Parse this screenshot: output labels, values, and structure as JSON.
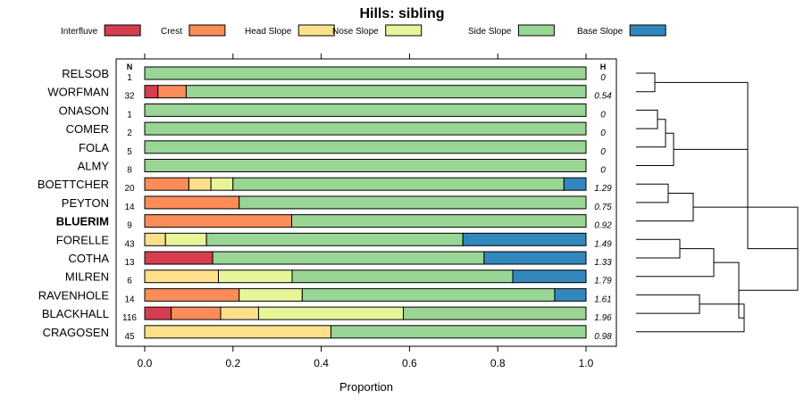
{
  "chart_data": {
    "type": "bar",
    "title": "Hills: sibling",
    "xlabel": "Proportion",
    "xlim": [
      0,
      1
    ],
    "xticks": [
      "0.0",
      "0.2",
      "0.4",
      "0.6",
      "0.8",
      "1.0"
    ],
    "n_header": "N",
    "h_header": "H",
    "legend": [
      {
        "name": "Interfluve",
        "color": "#d53e4f"
      },
      {
        "name": "Crest",
        "color": "#fc8d59"
      },
      {
        "name": "Head Slope",
        "color": "#fee08b"
      },
      {
        "name": "Nose Slope",
        "color": "#e6f598"
      },
      {
        "name": "Side Slope",
        "color": "#99d594"
      },
      {
        "name": "Base Slope",
        "color": "#3288bd"
      }
    ],
    "rows": [
      {
        "name": "RELSOB",
        "n": "1",
        "h": "0",
        "bold": false,
        "values": [
          0,
          0,
          0,
          0,
          1.0,
          0
        ]
      },
      {
        "name": "WORFMAN",
        "n": "32",
        "h": "0.54",
        "bold": false,
        "values": [
          0.03,
          0.064,
          0,
          0,
          0.906,
          0
        ]
      },
      {
        "name": "ONASON",
        "n": "1",
        "h": "0",
        "bold": false,
        "values": [
          0,
          0,
          0,
          0,
          1.0,
          0
        ]
      },
      {
        "name": "COMER",
        "n": "2",
        "h": "0",
        "bold": false,
        "values": [
          0,
          0,
          0,
          0,
          1.0,
          0
        ]
      },
      {
        "name": "FOLA",
        "n": "5",
        "h": "0",
        "bold": false,
        "values": [
          0,
          0,
          0,
          0,
          1.0,
          0
        ]
      },
      {
        "name": "ALMY",
        "n": "8",
        "h": "0",
        "bold": false,
        "values": [
          0,
          0,
          0,
          0,
          1.0,
          0
        ]
      },
      {
        "name": "BOETTCHER",
        "n": "20",
        "h": "1.29",
        "bold": false,
        "values": [
          0,
          0.1,
          0.05,
          0.05,
          0.75,
          0.05
        ]
      },
      {
        "name": "PEYTON",
        "n": "14",
        "h": "0.75",
        "bold": false,
        "values": [
          0,
          0.214,
          0,
          0,
          0.786,
          0
        ]
      },
      {
        "name": "BLUERIM",
        "n": "9",
        "h": "0.92",
        "bold": true,
        "values": [
          0,
          0.333,
          0,
          0,
          0.667,
          0
        ]
      },
      {
        "name": "FORELLE",
        "n": "43",
        "h": "1.49",
        "bold": false,
        "values": [
          0,
          0,
          0.047,
          0.093,
          0.581,
          0.279
        ]
      },
      {
        "name": "COTHA",
        "n": "13",
        "h": "1.33",
        "bold": false,
        "values": [
          0.154,
          0,
          0,
          0,
          0.615,
          0.231
        ]
      },
      {
        "name": "MILREN",
        "n": "6",
        "h": "1.79",
        "bold": false,
        "values": [
          0,
          0,
          0.167,
          0.167,
          0.5,
          0.166
        ]
      },
      {
        "name": "RAVENHOLE",
        "n": "14",
        "h": "1.61",
        "bold": false,
        "values": [
          0,
          0.214,
          0,
          0.143,
          0.572,
          0.071
        ]
      },
      {
        "name": "BLACKHALL",
        "n": "116",
        "h": "1.96",
        "bold": false,
        "values": [
          0.06,
          0.112,
          0.086,
          0.328,
          0.414,
          0
        ]
      },
      {
        "name": "CRAGOSEN",
        "n": "45",
        "h": "0.98",
        "bold": false,
        "values": [
          0,
          0,
          0.422,
          0,
          0.578,
          0
        ]
      }
    ]
  }
}
